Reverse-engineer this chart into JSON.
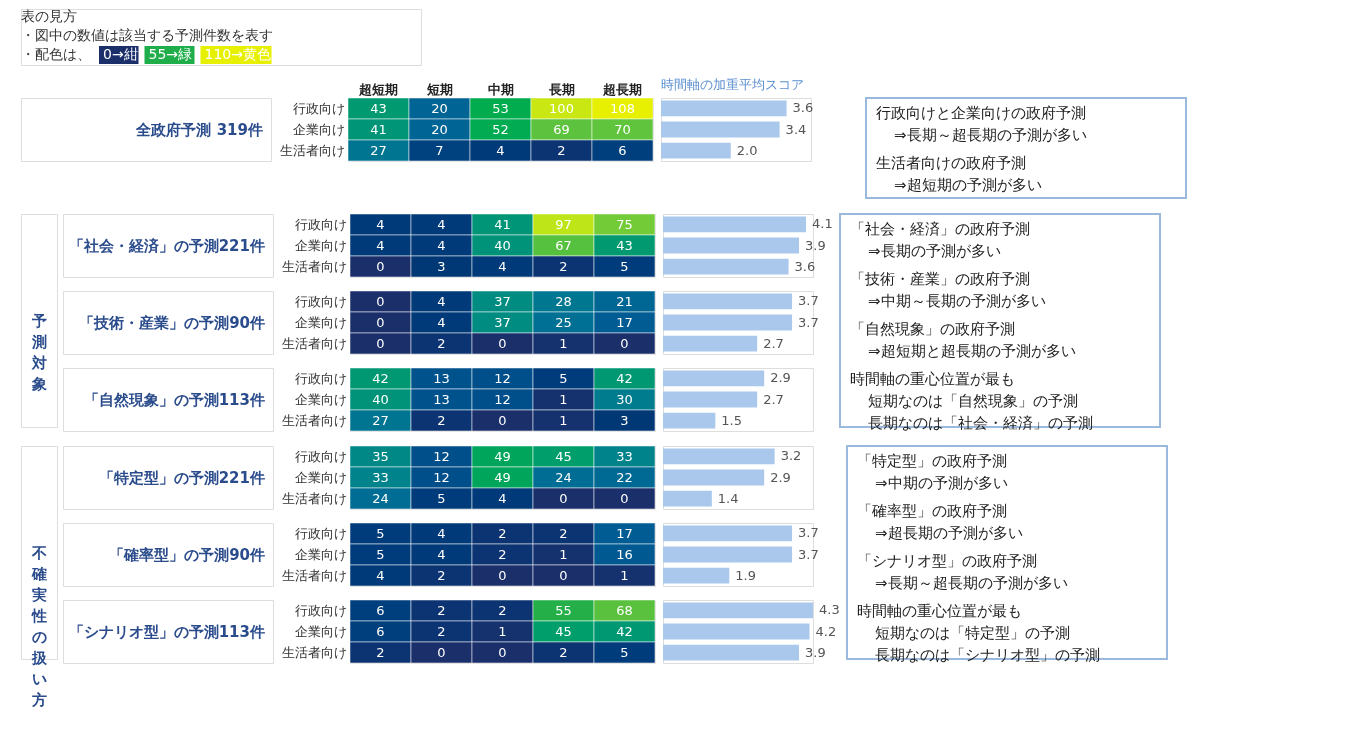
{
  "chart_data": [
    {
      "type": "other",
      "title": "表の見方",
      "annotations": [
        "・図中の数値は該当する予測件数を表す",
        "・配色は、",
        "0→紺",
        "55→緑",
        "110→黄色"
      ]
    },
    {
      "type": "heatmap",
      "title": "全政府予測  319件",
      "categories": [
        "超短期",
        "短期",
        "中期",
        "長期",
        "超長期"
      ],
      "y_categories": [
        "行政向け",
        "企業向け",
        "生活者向け"
      ],
      "cells": [
        [
          43,
          20,
          53,
          100,
          108
        ],
        [
          41,
          20,
          52,
          69,
          70
        ],
        [
          27,
          7,
          4,
          2,
          6
        ]
      ],
      "data_labels": true
    },
    {
      "type": "bar",
      "orientation": "horizontal",
      "title": "時間軸の加重平均スコア",
      "categories": [
        null,
        null,
        null
      ],
      "values": [
        3.6,
        3.4,
        2.0
      ],
      "value_labels": [
        "3.6",
        "3.4",
        "2.0"
      ],
      "tick_labels": false,
      "color": "#a9c8ec"
    },
    {
      "type": "other",
      "annotations": [
        "行政向けと企業向けの政府予測",
        "⇒長期～超長期の予測が多い",
        "生活者向けの政府予測",
        "⇒超短期の予測が多い"
      ]
    },
    {
      "type": "other",
      "title": "予測対象"
    },
    {
      "type": "heatmap",
      "title": "「社会・経済」の予測221件",
      "categories": [
        null,
        null,
        null,
        null,
        null
      ],
      "y_categories": [
        "行政向け",
        "企業向け",
        "生活者向け"
      ],
      "cells": [
        [
          4,
          4,
          41,
          97,
          75
        ],
        [
          4,
          4,
          40,
          67,
          43
        ],
        [
          0,
          3,
          4,
          2,
          5
        ]
      ],
      "data_labels": true,
      "tick_labels": "y"
    },
    {
      "type": "bar",
      "orientation": "horizontal",
      "categories": [
        null,
        null,
        null
      ],
      "values": [
        4.1,
        3.9,
        3.6
      ],
      "data_labels": true,
      "tick_labels": false,
      "color": "#a9c8ec"
    },
    {
      "type": "heatmap",
      "title": "「技術・産業」の予測90件",
      "categories": [
        null,
        null,
        null,
        null,
        null
      ],
      "y_categories": [
        "行政向け",
        "企業向け",
        "生活者向け"
      ],
      "cells": [
        [
          0,
          4,
          37,
          28,
          21
        ],
        [
          0,
          4,
          37,
          25,
          17
        ],
        [
          0,
          2,
          0,
          1,
          0
        ]
      ],
      "data_labels": true,
      "tick_labels": "y"
    },
    {
      "type": "bar",
      "orientation": "horizontal",
      "categories": [
        null,
        null,
        null
      ],
      "values": [
        3.7,
        3.7,
        2.7
      ],
      "data_labels": true,
      "tick_labels": false,
      "color": "#a9c8ec"
    },
    {
      "type": "heatmap",
      "title": "「自然現象」の予測113件",
      "categories": [
        null,
        null,
        null,
        null,
        null
      ],
      "y_categories": [
        "行政向け",
        "企業向け",
        "生活者向け"
      ],
      "cells": [
        [
          42,
          13,
          12,
          5,
          42
        ],
        [
          40,
          13,
          12,
          1,
          30
        ],
        [
          27,
          2,
          0,
          1,
          3
        ]
      ],
      "data_labels": true,
      "tick_labels": "y"
    },
    {
      "type": "bar",
      "orientation": "horizontal",
      "categories": [
        null,
        null,
        null
      ],
      "values": [
        2.9,
        2.7,
        1.5
      ],
      "data_labels": true,
      "tick_labels": false,
      "color": "#a9c8ec"
    },
    {
      "type": "other",
      "annotations": [
        "「社会・経済」の政府予測",
        "⇒長期の予測が多い",
        "「技術・産業」の政府予測",
        "⇒中期～長期の予測が多い",
        "「自然現象」の政府予測",
        "⇒超短期と超長期の予測が多い",
        "時間軸の重心位置が最も",
        "短期なのは「自然現象」の予測",
        "長期なのは「社会・経済」の予測"
      ]
    },
    {
      "type": "other",
      "title": "不確実性の扱い方"
    },
    {
      "type": "heatmap",
      "title": "「特定型」の予測221件",
      "categories": [
        null,
        null,
        null,
        null,
        null
      ],
      "y_categories": [
        "行政向け",
        "企業向け",
        "生活者向け"
      ],
      "cells": [
        [
          35,
          12,
          49,
          45,
          33
        ],
        [
          33,
          12,
          49,
          24,
          22
        ],
        [
          24,
          5,
          4,
          0,
          0
        ]
      ],
      "data_labels": true,
      "tick_labels": "y"
    },
    {
      "type": "bar",
      "orientation": "horizontal",
      "categories": [
        null,
        null,
        null
      ],
      "values": [
        3.2,
        2.9,
        1.4
      ],
      "data_labels": true,
      "tick_labels": false,
      "color": "#a9c8ec"
    },
    {
      "type": "heatmap",
      "title": "「確率型」の予測90件",
      "categories": [
        null,
        null,
        null,
        null,
        null
      ],
      "y_categories": [
        "行政向け",
        "企業向け",
        "生活者向け"
      ],
      "cells": [
        [
          5,
          4,
          2,
          2,
          17
        ],
        [
          5,
          4,
          2,
          1,
          16
        ],
        [
          4,
          2,
          0,
          0,
          1
        ]
      ],
      "data_labels": true,
      "tick_labels": "y"
    },
    {
      "type": "bar",
      "orientation": "horizontal",
      "categories": [
        null,
        null,
        null
      ],
      "values": [
        3.7,
        3.7,
        1.9
      ],
      "data_labels": true,
      "tick_labels": false,
      "color": "#a9c8ec"
    },
    {
      "type": "heatmap",
      "title": "「シナリオ型」の予測113件",
      "categories": [
        null,
        null,
        null,
        null,
        null
      ],
      "y_categories": [
        "行政向け",
        "企業向け",
        "生活者向け"
      ],
      "cells": [
        [
          6,
          2,
          2,
          55,
          68
        ],
        [
          6,
          2,
          1,
          45,
          42
        ],
        [
          2,
          0,
          0,
          2,
          5
        ]
      ],
      "data_labels": true,
      "tick_labels": "y"
    },
    {
      "type": "bar",
      "orientation": "horizontal",
      "categories": [
        null,
        null,
        null
      ],
      "values": [
        4.3,
        4.2,
        3.9
      ],
      "data_labels": true,
      "tick_labels": false,
      "color": "#a9c8ec"
    },
    {
      "type": "other",
      "annotations": [
        "「特定型」の政府予測",
        "⇒中期の予測が多い",
        "「確率型」の政府予測",
        "⇒超長期の予測が多い",
        "「シナリオ型」の政府予測",
        "⇒長期～超長期の予測が多い",
        "時間軸の重心位置が最も",
        "短期なのは「特定型」の予測",
        "長期なのは「シナリオ型」の予測"
      ]
    }
  ]
}
